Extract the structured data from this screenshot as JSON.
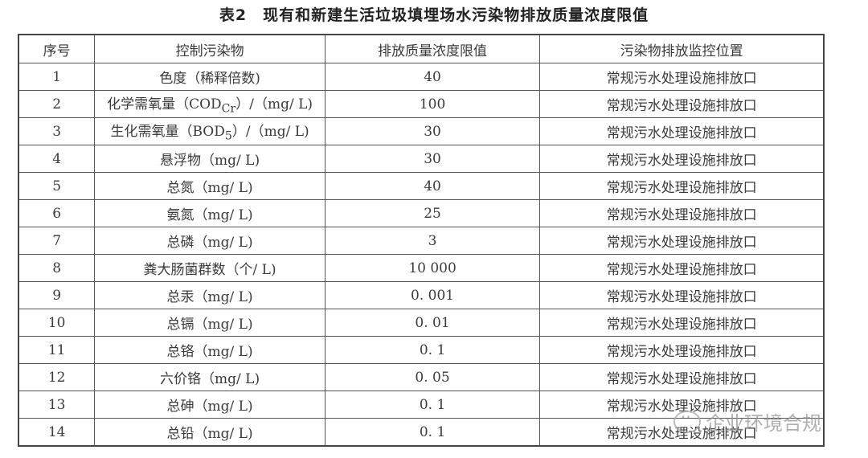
{
  "title": "表2　现有和新建生活垃圾填埋场水污染物排放质量浓度限值",
  "table": {
    "headers": [
      "序号",
      "控制污染物",
      "排放质量浓度限值",
      "污染物排放监控位置"
    ],
    "rows": [
      [
        "1",
        "色度（稀释倍数)",
        "40",
        "常规污水处理设施排放口"
      ],
      [
        "2",
        "化学需氧量（COD<sub>Cr</sub>）/（mg/ L)",
        "100",
        "常规污水处理设施排放口"
      ],
      [
        "3",
        "生化需氧量（BOD<sub>5</sub>）/（mg/ L)",
        "30",
        "常规污水处理设施排放口"
      ],
      [
        "4",
        "悬浮物（mg/ L)",
        "30",
        "常规污水处理设施排放口"
      ],
      [
        "5",
        "总氮（mg/ L)",
        "40",
        "常规污水处理设施排放口"
      ],
      [
        "6",
        "氨氮（mg/ L)",
        "25",
        "常规污水处理设施排放口"
      ],
      [
        "7",
        "总磷（mg/ L)",
        "3",
        "常规污水处理设施排放口"
      ],
      [
        "8",
        "粪大肠菌群数（个/ L)",
        "10 000",
        "常规污水处理设施排放口"
      ],
      [
        "9",
        "总汞（mg/ L)",
        "0. 001",
        "常规污水处理设施排放口"
      ],
      [
        "10",
        "总镉（mg/ L)",
        "0. 01",
        "常规污水处理设施排放口"
      ],
      [
        "11",
        "总铬（mg/ L)",
        "0. 1",
        "常规污水处理设施排放口"
      ],
      [
        "12",
        "六价铬（mg/ L)",
        "0. 05",
        "常规污水处理设施排放口"
      ],
      [
        "13",
        "总砷（mg/ L)",
        "0. 1",
        "常规污水处理设施排放口"
      ],
      [
        "14",
        "总铅（mg/ L)",
        "0. 1",
        "常规污水处理设施排放口"
      ]
    ]
  },
  "watermark": {
    "text": "企业环境合规",
    "icon": "wechat-icon"
  }
}
